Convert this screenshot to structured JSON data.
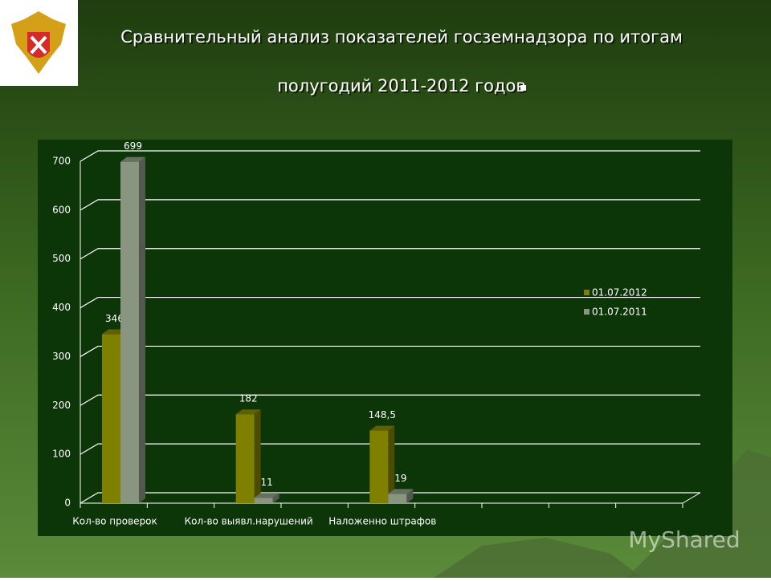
{
  "chart_data": {
    "type": "bar3d",
    "title_lines": [
      "Сравнительный анализ показателей госземнадзора по итогам",
      "полугодий 2011-2012 годов"
    ],
    "categories": [
      "Кол-во проверок",
      null,
      "Кол-во выявл.нарушений",
      null,
      "Наложенно штрафов",
      null,
      null,
      null,
      null
    ],
    "series": [
      {
        "name": "01.07.2012",
        "color": "#808000",
        "values": [
          346,
          null,
          182,
          null,
          148.5,
          null,
          null,
          null,
          null
        ],
        "value_labels": [
          "346",
          null,
          "182",
          null,
          "148,5",
          null,
          null,
          null,
          null
        ]
      },
      {
        "name": "01.07.2011",
        "color": "#8a9580",
        "values": [
          699,
          null,
          11,
          null,
          19,
          null,
          null,
          null,
          null
        ]
      }
    ],
    "ylim": [
      0,
      700
    ],
    "yticks": [
      0,
      100,
      200,
      300,
      400,
      500,
      600,
      700
    ],
    "grid": true,
    "legend": "right"
  },
  "watermark": "MyShared"
}
